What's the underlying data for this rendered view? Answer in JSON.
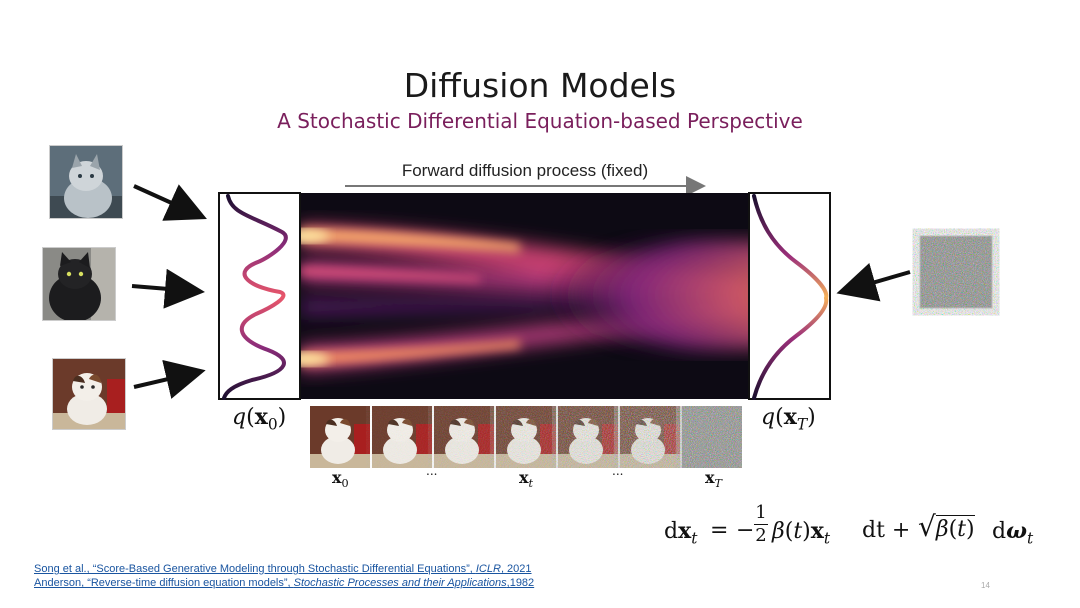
{
  "slide": {
    "title": "Diffusion Models",
    "subtitle": "A Stochastic Differential Equation-based Perspective",
    "page_number": "14"
  },
  "diagram": {
    "forward_label": "Forward diffusion process (fixed)",
    "q0": {
      "fn": "q",
      "bold": "x",
      "sub": "0"
    },
    "qT": {
      "fn": "q",
      "bold": "x",
      "sub": "T"
    },
    "strip_labels": [
      {
        "bold": "x",
        "sub": "0"
      },
      {
        "text": "..."
      },
      {
        "bold": "x",
        "sub": "t"
      },
      {
        "text": "..."
      },
      {
        "bold": "x",
        "sub": "T"
      }
    ],
    "colors": {
      "subtitle": "#7a1f5c",
      "link": "#1a55a0",
      "heatmap_bg": "#0d0a14"
    }
  },
  "equation": {
    "lhs": "dx",
    "lhs_sub": "t",
    "eq": "=",
    "minus": "−",
    "frac_num": "1",
    "frac_den": "2",
    "beta_term": "β(t)x",
    "beta_sub": "t",
    "dt": "dt +",
    "sqrt_arg": "β(t)",
    "dw": "dω",
    "dw_sub": "t"
  },
  "references": [
    {
      "text": "Song et al., “Score-Based Generative Modeling through Stochastic Differential Equations”, ",
      "venue": "ICLR",
      "year": ", 2021"
    },
    {
      "text": "Anderson, “Reverse-time diffusion equation models”, ",
      "venue": "Stochastic Processes and their Applications",
      "year": ",1982"
    }
  ]
}
